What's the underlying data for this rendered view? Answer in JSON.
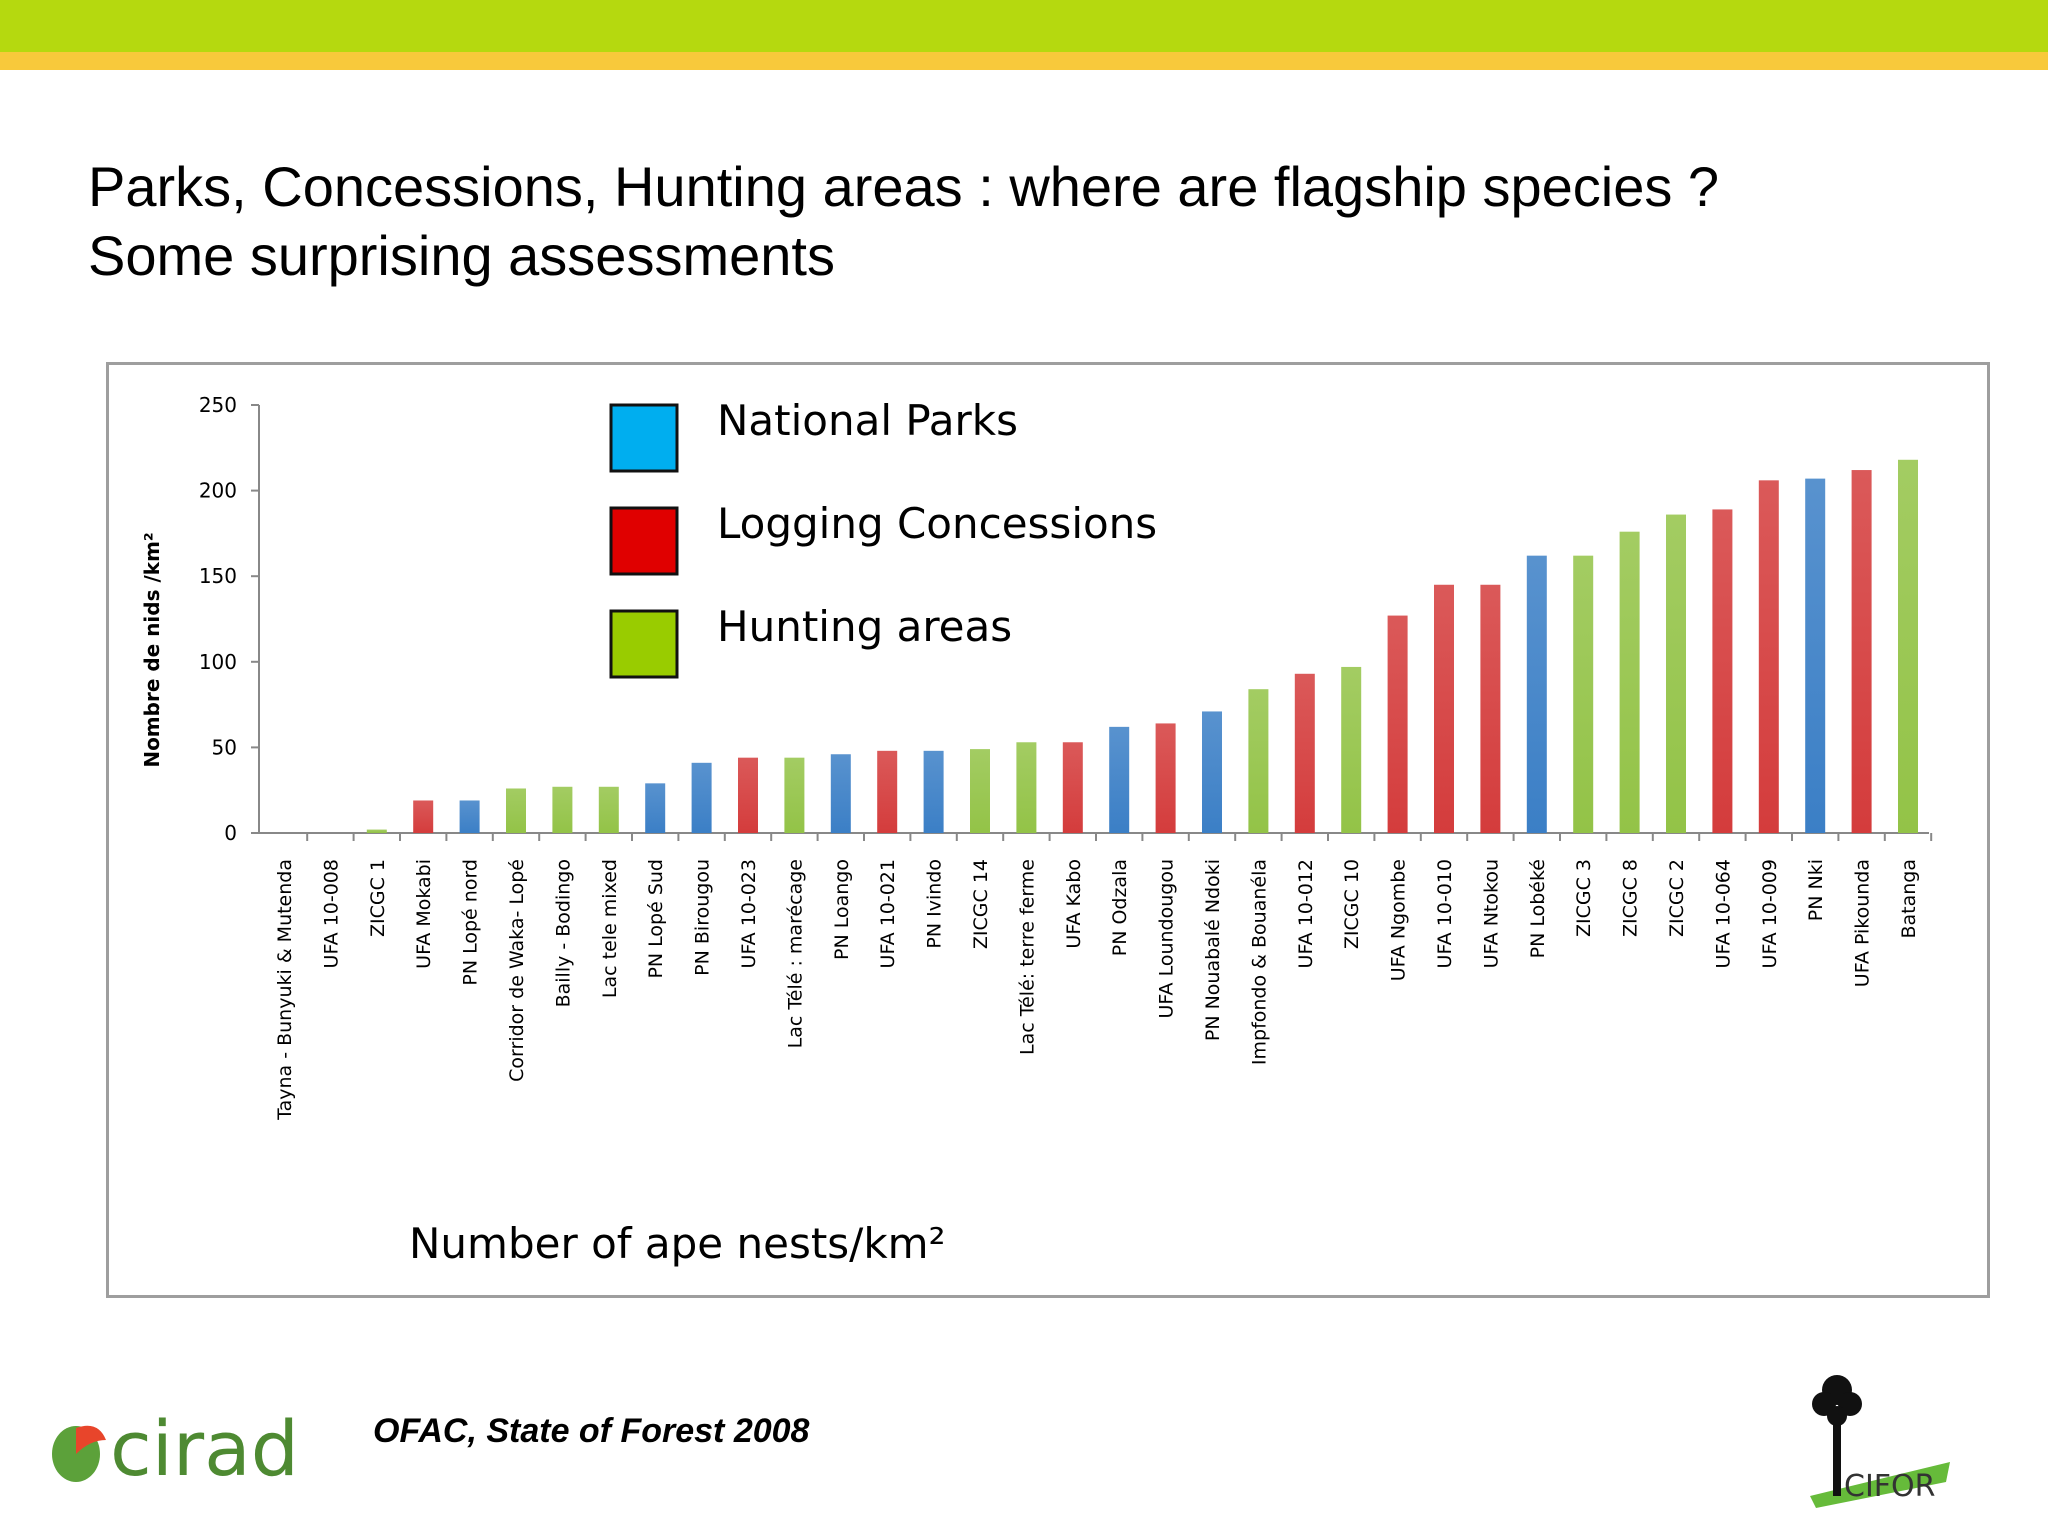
{
  "slide": {
    "title_line1": "Parks, Concessions, Hunting areas : where are flagship species ?",
    "title_line2": "Some surprising assessments",
    "source": "OFAC, State of Forest 2008",
    "logo_left": "cirad",
    "logo_right": "CIFOR"
  },
  "colors": {
    "national_parks": "#3b7fc6",
    "logging_concessions": "#d43c3c",
    "hunting_areas": "#93c347",
    "legend_national_parks": "#00aeef",
    "legend_logging_concessions": "#e00000",
    "legend_hunting_areas": "#99cc00",
    "top_band": "#b5d90f",
    "top_stripe": "#f8c93b"
  },
  "chart_data": {
    "type": "bar",
    "ylabel": "Nombre de nids /km²",
    "caption": "Number of  ape nests/km²",
    "ylim": [
      0,
      250
    ],
    "yticks": [
      0,
      50,
      100,
      150,
      200,
      250
    ],
    "legend": [
      {
        "key": "national_parks",
        "label": "National Parks"
      },
      {
        "key": "logging_concessions",
        "label": "Logging Concessions"
      },
      {
        "key": "hunting_areas",
        "label": "Hunting areas"
      }
    ],
    "categories": [
      "Tayna - Bunyuki & Mutenda",
      "UFA 10-008",
      "ZICGC 1",
      "UFA Mokabi",
      "PN Lopé nord",
      "Corridor de Waka- Lopé",
      "Bailly - Bodingo",
      "Lac tele mixed",
      "PN Lopé Sud",
      "PN Birougou",
      "UFA 10-023",
      "Lac Télé : marécage",
      "PN Loango",
      "UFA 10-021",
      "PN Ivindo",
      "ZICGC 14",
      "Lac Télé: terre ferme",
      "UFA Kabo",
      "PN Odzala",
      "UFA Loundougou",
      "PN Nouabalé Ndoki",
      "Impfondo & Bouanéla",
      "UFA 10-012",
      "ZICGC 10",
      "UFA Ngombe",
      "UFA 10-010",
      "UFA Ntokou",
      "PN Lobéké",
      "ZICGC 3",
      "ZICGC 8",
      "ZICGC 2",
      "UFA 10-064",
      "UFA 10-009",
      "PN Nki",
      "UFA Pikounda",
      "Batanga"
    ],
    "values": [
      0,
      0,
      2,
      19,
      19,
      26,
      27,
      27,
      29,
      41,
      44,
      44,
      46,
      48,
      48,
      49,
      53,
      53,
      62,
      64,
      71,
      84,
      93,
      97,
      127,
      145,
      145,
      162,
      162,
      176,
      186,
      189,
      206,
      207,
      212,
      218
    ],
    "groups": [
      "hunting_areas",
      "logging_concessions",
      "hunting_areas",
      "logging_concessions",
      "national_parks",
      "hunting_areas",
      "hunting_areas",
      "hunting_areas",
      "national_parks",
      "national_parks",
      "logging_concessions",
      "hunting_areas",
      "national_parks",
      "logging_concessions",
      "national_parks",
      "hunting_areas",
      "hunting_areas",
      "logging_concessions",
      "national_parks",
      "logging_concessions",
      "national_parks",
      "hunting_areas",
      "logging_concessions",
      "hunting_areas",
      "logging_concessions",
      "logging_concessions",
      "logging_concessions",
      "national_parks",
      "hunting_areas",
      "hunting_areas",
      "hunting_areas",
      "logging_concessions",
      "logging_concessions",
      "national_parks",
      "logging_concessions",
      "hunting_areas"
    ]
  }
}
